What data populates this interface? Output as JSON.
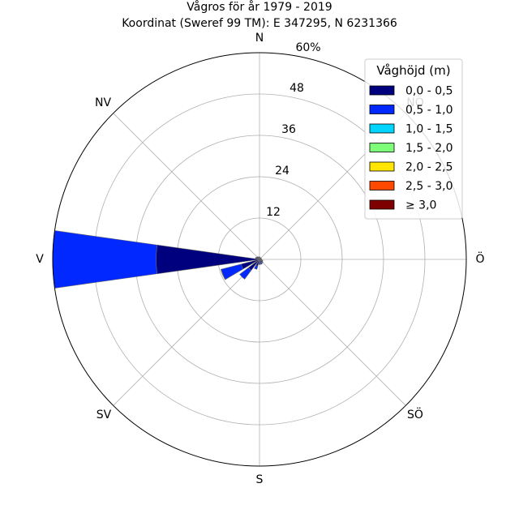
{
  "chart_data": {
    "type": "windrose",
    "title": "Vågros för år 1979 - 2019",
    "subtitle": "Koordinat (Sweref 99 TM): E 347295, N 6231366",
    "directions": [
      "N",
      "NV",
      "V",
      "SV",
      "S",
      "SÖ",
      "Ö",
      "NÖ"
    ],
    "direction_labels": {
      "N": "N",
      "NV": "NV",
      "V": "V",
      "SV": "SV",
      "S": "S",
      "SÖ": "SÖ",
      "Ö": "Ö",
      "NÖ": "NÖ"
    },
    "radial_ticks": [
      "12",
      "24",
      "36",
      "48",
      "60%"
    ],
    "radial_tick_values": [
      12,
      24,
      36,
      48,
      60
    ],
    "rmax": 60,
    "grid": true,
    "legend_title": "Våghöjd (m)",
    "legend_position": "top-right",
    "bins": [
      {
        "label": "0,0 - 0,5",
        "color": "#00007f"
      },
      {
        "label": "0,5 - 1,0",
        "color": "#0028ff"
      },
      {
        "label": "1,0 - 1,5",
        "color": "#00d4ff"
      },
      {
        "label": "1,5 - 2,0",
        "color": "#7dff7a"
      },
      {
        "label": "2,0 - 2,5",
        "color": "#ffe600"
      },
      {
        "label": "2,5 - 3,0",
        "color": "#ff4800"
      },
      {
        "label": "≥ 3,0",
        "color": "#7f0000"
      }
    ],
    "sectors": [
      {
        "direction_deg": 0,
        "cumulative": [
          0.5,
          0.7,
          0.7,
          0.7,
          0.7,
          0.7,
          0.7
        ]
      },
      {
        "direction_deg": 22.5,
        "cumulative": [
          0.5,
          0.6,
          0.6,
          0.6,
          0.6,
          0.6,
          0.6
        ]
      },
      {
        "direction_deg": 45,
        "cumulative": [
          0.5,
          0.6,
          0.6,
          0.6,
          0.6,
          0.6,
          0.6
        ]
      },
      {
        "direction_deg": 67.5,
        "cumulative": [
          0.5,
          0.6,
          0.6,
          0.6,
          0.6,
          0.6,
          0.6
        ]
      },
      {
        "direction_deg": 90,
        "cumulative": [
          0.5,
          0.6,
          0.6,
          0.6,
          0.6,
          0.6,
          0.6
        ]
      },
      {
        "direction_deg": 112.5,
        "cumulative": [
          0.8,
          1.0,
          1.0,
          1.0,
          1.0,
          1.0,
          1.0
        ]
      },
      {
        "direction_deg": 135,
        "cumulative": [
          1.0,
          1.3,
          1.3,
          1.3,
          1.3,
          1.3,
          1.3
        ]
      },
      {
        "direction_deg": 157.5,
        "cumulative": [
          1.0,
          1.5,
          1.5,
          1.5,
          1.5,
          1.5,
          1.5
        ]
      },
      {
        "direction_deg": 180,
        "cumulative": [
          1.0,
          1.5,
          1.5,
          1.5,
          1.5,
          1.5,
          1.5
        ]
      },
      {
        "direction_deg": 202.5,
        "cumulative": [
          2.0,
          3.0,
          3.0,
          3.0,
          3.0,
          3.0,
          3.0
        ]
      },
      {
        "direction_deg": 225,
        "cumulative": [
          4.0,
          7.2,
          7.2,
          7.2,
          7.2,
          7.2,
          7.2
        ]
      },
      {
        "direction_deg": 247.5,
        "cumulative": [
          5.5,
          11.5,
          11.6,
          11.6,
          11.6,
          11.6,
          11.6
        ]
      },
      {
        "direction_deg": 270,
        "cumulative": [
          30.0,
          61.0,
          62.3,
          62.3,
          62.3,
          62.3,
          62.3
        ]
      },
      {
        "direction_deg": 292.5,
        "cumulative": [
          1.0,
          1.2,
          1.2,
          1.2,
          1.2,
          1.2,
          1.2
        ]
      },
      {
        "direction_deg": 315,
        "cumulative": [
          0.8,
          1.0,
          1.0,
          1.0,
          1.0,
          1.0,
          1.0
        ]
      },
      {
        "direction_deg": 337.5,
        "cumulative": [
          0.6,
          0.8,
          0.8,
          0.8,
          0.8,
          0.8,
          0.8
        ]
      }
    ]
  }
}
